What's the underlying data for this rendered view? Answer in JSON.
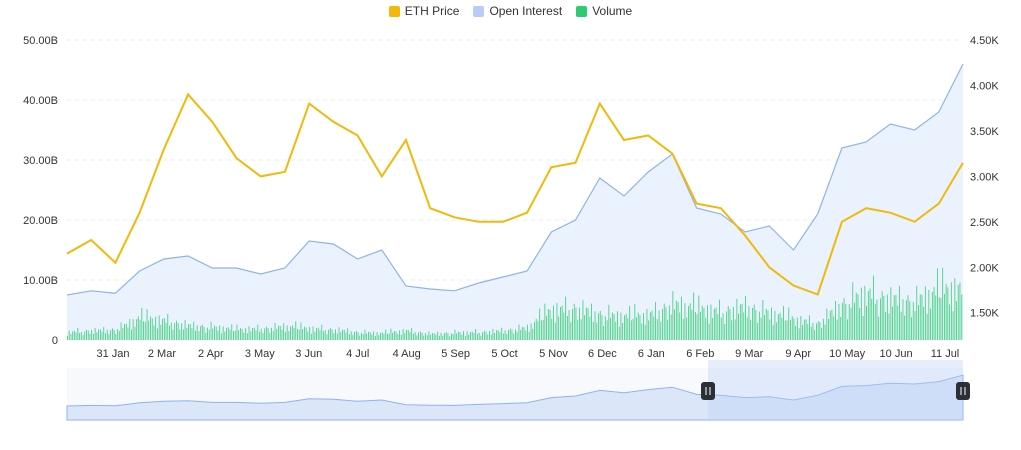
{
  "legend": [
    {
      "label": "ETH Price",
      "color": "#f0b90b"
    },
    {
      "label": "Open Interest",
      "color": "#b8cdf5"
    },
    {
      "label": "Volume",
      "color": "#2ecc71"
    }
  ],
  "chart_data": {
    "type": "line",
    "title": "",
    "grid": true,
    "legend_position": "top-center",
    "x": [
      "2023-01-01",
      "2023-01-15",
      "2023-01-31",
      "2023-02-14",
      "2023-03-02",
      "2023-03-16",
      "2023-04-02",
      "2023-04-16",
      "2023-05-03",
      "2023-05-17",
      "2023-06-03",
      "2023-06-17",
      "2023-07-04",
      "2023-07-18",
      "2023-08-04",
      "2023-08-18",
      "2023-09-05",
      "2023-09-19",
      "2023-10-05",
      "2023-10-19",
      "2023-11-05",
      "2023-11-19",
      "2023-12-06",
      "2023-12-20",
      "2024-01-06",
      "2024-01-20",
      "2024-02-06",
      "2024-02-20",
      "2024-03-09",
      "2024-03-23",
      "2024-04-09",
      "2024-04-23",
      "2024-05-10",
      "2024-05-24",
      "2024-06-10",
      "2024-06-24",
      "2024-07-11",
      "2024-07-18"
    ],
    "x_ticks": [
      "31 Jan",
      "2 Mar",
      "2 Apr",
      "3 May",
      "3 Jun",
      "4 Jul",
      "4 Aug",
      "5 Sep",
      "5 Oct",
      "5 Nov",
      "6 Dec",
      "6 Jan",
      "6 Feb",
      "9 Mar",
      "9 Apr",
      "10 May",
      "10 Jun",
      "11 Jul"
    ],
    "y_left": {
      "ticks": [
        "0",
        "10.00B",
        "20.00B",
        "30.00B",
        "40.00B",
        "50.00B"
      ],
      "ylim": [
        0,
        50000000000
      ]
    },
    "y_right": {
      "ticks": [
        "1.50K",
        "2.00K",
        "2.50K",
        "3.00K",
        "3.50K",
        "4.00K",
        "4.50K"
      ],
      "ylim": [
        1200,
        4500
      ]
    },
    "series": [
      {
        "name": "ETH Price",
        "axis": "right",
        "color": "#f0b90b",
        "values": [
          2150,
          2300,
          2050,
          2600,
          3300,
          3900,
          3600,
          3200,
          3000,
          3050,
          3800,
          3600,
          3450,
          3000,
          3400,
          2650,
          2550,
          2500,
          2500,
          2600,
          3100,
          3150,
          3800,
          3400,
          3450,
          3250,
          2700,
          2650,
          2350,
          2000,
          1800,
          1700,
          2500,
          2650,
          2600,
          2500,
          2700,
          3150
        ]
      },
      {
        "name": "Open Interest",
        "axis": "left",
        "color": "#8fb3ee",
        "values": [
          7500000000,
          8200000000,
          7800000000,
          11500000000,
          13500000000,
          14000000000,
          12000000000,
          12000000000,
          11000000000,
          12000000000,
          16500000000,
          16000000000,
          13500000000,
          15000000000,
          9000000000,
          8500000000,
          8200000000,
          9500000000,
          10500000000,
          11500000000,
          18000000000,
          20000000000,
          27000000000,
          24000000000,
          28000000000,
          31000000000,
          22000000000,
          21000000000,
          18000000000,
          19000000000,
          15000000000,
          21000000000,
          32000000000,
          33000000000,
          36000000000,
          35000000000,
          38000000000,
          46000000000
        ]
      },
      {
        "name": "Volume",
        "axis": "left",
        "type": "bar",
        "color": "#2ecc71",
        "values": [
          1500000000,
          1800000000,
          2000000000,
          4200000000,
          3800000000,
          2800000000,
          2500000000,
          2000000000,
          2200000000,
          2600000000,
          2200000000,
          2000000000,
          1500000000,
          1300000000,
          1800000000,
          1200000000,
          1400000000,
          1500000000,
          1800000000,
          2400000000,
          5800000000,
          6200000000,
          5000000000,
          4500000000,
          4800000000,
          7000000000,
          6000000000,
          5500000000,
          6500000000,
          5200000000,
          4000000000,
          3200000000,
          7000000000,
          9000000000,
          8000000000,
          7500000000,
          9500000000,
          10000000000
        ]
      }
    ],
    "navigator": {
      "range_start": "6 Feb",
      "range_end": "end"
    }
  }
}
